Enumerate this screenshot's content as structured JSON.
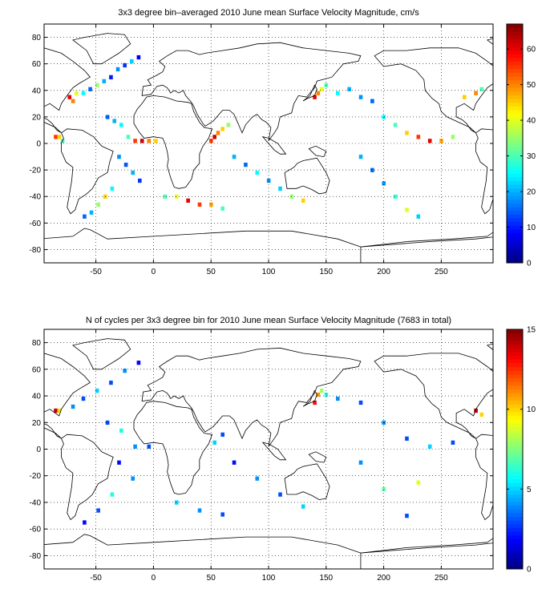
{
  "chart_data": [
    {
      "type": "heatmap",
      "title": "3x3 degree bin–averaged 2010 June mean Surface Velocity Magnitude, cm/s",
      "xlabel": "",
      "ylabel": "",
      "xlim": [
        -95,
        295
      ],
      "ylim": [
        -90,
        90
      ],
      "xticks": [
        -50,
        0,
        50,
        100,
        150,
        200,
        250
      ],
      "yticks": [
        -80,
        -60,
        -40,
        -20,
        0,
        20,
        40,
        60,
        80
      ],
      "grid": "dotted",
      "colorbar": {
        "min": 0,
        "max": 67,
        "ticks": [
          0,
          10,
          20,
          30,
          40,
          50,
          60
        ],
        "colormap": "jet",
        "position": "right"
      },
      "cells": [
        {
          "lon": -85,
          "lat": 5,
          "v": 55
        },
        {
          "lon": -82,
          "lat": 5,
          "v": 45
        },
        {
          "lon": -79,
          "lat": 2,
          "v": 30
        },
        {
          "lon": -70,
          "lat": 32,
          "v": 50
        },
        {
          "lon": -73,
          "lat": 35,
          "v": 60
        },
        {
          "lon": -67,
          "lat": 38,
          "v": 40
        },
        {
          "lon": -61,
          "lat": 38,
          "v": 25
        },
        {
          "lon": -55,
          "lat": 41,
          "v": 15
        },
        {
          "lon": -49,
          "lat": 44,
          "v": 35
        },
        {
          "lon": -43,
          "lat": 47,
          "v": 20
        },
        {
          "lon": -37,
          "lat": 50,
          "v": 10
        },
        {
          "lon": -31,
          "lat": 56,
          "v": 18
        },
        {
          "lon": -25,
          "lat": 59,
          "v": 12
        },
        {
          "lon": -19,
          "lat": 62,
          "v": 22
        },
        {
          "lon": -13,
          "lat": 65,
          "v": 8
        },
        {
          "lon": -40,
          "lat": 20,
          "v": 15
        },
        {
          "lon": -34,
          "lat": 17,
          "v": 20
        },
        {
          "lon": -28,
          "lat": 14,
          "v": 25
        },
        {
          "lon": -22,
          "lat": 5,
          "v": 30
        },
        {
          "lon": -16,
          "lat": 2,
          "v": 55
        },
        {
          "lon": -10,
          "lat": 2,
          "v": 62
        },
        {
          "lon": -4,
          "lat": 2,
          "v": 50
        },
        {
          "lon": 2,
          "lat": 2,
          "v": 45
        },
        {
          "lon": -30,
          "lat": -10,
          "v": 18
        },
        {
          "lon": -24,
          "lat": -16,
          "v": 14
        },
        {
          "lon": -18,
          "lat": -22,
          "v": 20
        },
        {
          "lon": -12,
          "lat": -28,
          "v": 12
        },
        {
          "lon": -36,
          "lat": -34,
          "v": 25
        },
        {
          "lon": -42,
          "lat": -40,
          "v": 45
        },
        {
          "lon": -48,
          "lat": -46,
          "v": 35
        },
        {
          "lon": -54,
          "lat": -52,
          "v": 20
        },
        {
          "lon": -60,
          "lat": -55,
          "v": 15
        },
        {
          "lon": 10,
          "lat": -40,
          "v": 30
        },
        {
          "lon": 20,
          "lat": -40,
          "v": 40
        },
        {
          "lon": 30,
          "lat": -43,
          "v": 60
        },
        {
          "lon": 40,
          "lat": -46,
          "v": 55
        },
        {
          "lon": 50,
          "lat": -46,
          "v": 48
        },
        {
          "lon": 60,
          "lat": -49,
          "v": 30
        },
        {
          "lon": 50,
          "lat": 2,
          "v": 55
        },
        {
          "lon": 53,
          "lat": 5,
          "v": 62
        },
        {
          "lon": 56,
          "lat": 8,
          "v": 50
        },
        {
          "lon": 60,
          "lat": 11,
          "v": 45
        },
        {
          "lon": 65,
          "lat": 14,
          "v": 35
        },
        {
          "lon": 70,
          "lat": -10,
          "v": 20
        },
        {
          "lon": 80,
          "lat": -16,
          "v": 15
        },
        {
          "lon": 90,
          "lat": -22,
          "v": 25
        },
        {
          "lon": 100,
          "lat": -28,
          "v": 18
        },
        {
          "lon": 110,
          "lat": -34,
          "v": 22
        },
        {
          "lon": 120,
          "lat": -40,
          "v": 35
        },
        {
          "lon": 130,
          "lat": -43,
          "v": 45
        },
        {
          "lon": 140,
          "lat": 35,
          "v": 60
        },
        {
          "lon": 143,
          "lat": 38,
          "v": 50
        },
        {
          "lon": 146,
          "lat": 41,
          "v": 40
        },
        {
          "lon": 150,
          "lat": 44,
          "v": 30
        },
        {
          "lon": 160,
          "lat": 38,
          "v": 25
        },
        {
          "lon": 170,
          "lat": 41,
          "v": 20
        },
        {
          "lon": 180,
          "lat": 35,
          "v": 18
        },
        {
          "lon": 190,
          "lat": 32,
          "v": 15
        },
        {
          "lon": 200,
          "lat": 20,
          "v": 25
        },
        {
          "lon": 210,
          "lat": 14,
          "v": 30
        },
        {
          "lon": 220,
          "lat": 8,
          "v": 45
        },
        {
          "lon": 230,
          "lat": 5,
          "v": 55
        },
        {
          "lon": 240,
          "lat": 2,
          "v": 60
        },
        {
          "lon": 250,
          "lat": 2,
          "v": 48
        },
        {
          "lon": 260,
          "lat": 5,
          "v": 35
        },
        {
          "lon": 180,
          "lat": -10,
          "v": 20
        },
        {
          "lon": 190,
          "lat": -20,
          "v": 15
        },
        {
          "lon": 200,
          "lat": -30,
          "v": 18
        },
        {
          "lon": 210,
          "lat": -40,
          "v": 28
        },
        {
          "lon": 220,
          "lat": -50,
          "v": 40
        },
        {
          "lon": 230,
          "lat": -55,
          "v": 22
        },
        {
          "lon": 270,
          "lat": 35,
          "v": 45
        },
        {
          "lon": 280,
          "lat": 38,
          "v": 50
        },
        {
          "lon": 285,
          "lat": 41,
          "v": 30
        }
      ]
    },
    {
      "type": "heatmap",
      "title": "N of cycles per 3x3 degree bin for 2010 June mean Surface Velocity Magnitude (7683 in total)",
      "xlabel": "",
      "ylabel": "",
      "xlim": [
        -95,
        295
      ],
      "ylim": [
        -90,
        90
      ],
      "xticks": [
        -50,
        0,
        50,
        100,
        150,
        200,
        250
      ],
      "yticks": [
        -80,
        -60,
        -40,
        -20,
        0,
        20,
        40,
        60,
        80
      ],
      "grid": "dotted",
      "colorbar": {
        "min": 0,
        "max": 15,
        "ticks": [
          0,
          5,
          10,
          15
        ],
        "colormap": "jet",
        "position": "right"
      },
      "cells": [
        {
          "lon": -85,
          "lat": 29,
          "v": 14
        },
        {
          "lon": -82,
          "lat": 29,
          "v": 10
        },
        {
          "lon": -70,
          "lat": 32,
          "v": 4
        },
        {
          "lon": -61,
          "lat": 38,
          "v": 3
        },
        {
          "lon": -49,
          "lat": 44,
          "v": 5
        },
        {
          "lon": -37,
          "lat": 50,
          "v": 3
        },
        {
          "lon": -25,
          "lat": 59,
          "v": 4
        },
        {
          "lon": -13,
          "lat": 65,
          "v": 2
        },
        {
          "lon": -40,
          "lat": 20,
          "v": 3
        },
        {
          "lon": -28,
          "lat": 14,
          "v": 6
        },
        {
          "lon": -16,
          "lat": 2,
          "v": 4
        },
        {
          "lon": -4,
          "lat": 2,
          "v": 3
        },
        {
          "lon": -30,
          "lat": -10,
          "v": 2
        },
        {
          "lon": -18,
          "lat": -22,
          "v": 4
        },
        {
          "lon": -36,
          "lat": -34,
          "v": 6
        },
        {
          "lon": -48,
          "lat": -46,
          "v": 3
        },
        {
          "lon": -60,
          "lat": -55,
          "v": 2
        },
        {
          "lon": 20,
          "lat": -40,
          "v": 5
        },
        {
          "lon": 40,
          "lat": -46,
          "v": 4
        },
        {
          "lon": 60,
          "lat": -49,
          "v": 3
        },
        {
          "lon": 53,
          "lat": 5,
          "v": 5
        },
        {
          "lon": 60,
          "lat": 11,
          "v": 3
        },
        {
          "lon": 70,
          "lat": -10,
          "v": 2
        },
        {
          "lon": 90,
          "lat": -22,
          "v": 4
        },
        {
          "lon": 110,
          "lat": -34,
          "v": 3
        },
        {
          "lon": 130,
          "lat": -43,
          "v": 5
        },
        {
          "lon": 140,
          "lat": 35,
          "v": 13
        },
        {
          "lon": 143,
          "lat": 41,
          "v": 11
        },
        {
          "lon": 146,
          "lat": 44,
          "v": 8
        },
        {
          "lon": 150,
          "lat": 41,
          "v": 6
        },
        {
          "lon": 160,
          "lat": 38,
          "v": 4
        },
        {
          "lon": 180,
          "lat": 35,
          "v": 3
        },
        {
          "lon": 200,
          "lat": 20,
          "v": 4
        },
        {
          "lon": 220,
          "lat": 8,
          "v": 3
        },
        {
          "lon": 240,
          "lat": 2,
          "v": 5
        },
        {
          "lon": 260,
          "lat": 5,
          "v": 3
        },
        {
          "lon": 180,
          "lat": -10,
          "v": 4
        },
        {
          "lon": 200,
          "lat": -30,
          "v": 7
        },
        {
          "lon": 220,
          "lat": -50,
          "v": 3
        },
        {
          "lon": 230,
          "lat": -25,
          "v": 9
        },
        {
          "lon": 280,
          "lat": 29,
          "v": 14
        },
        {
          "lon": 285,
          "lat": 26,
          "v": 10
        }
      ]
    }
  ]
}
